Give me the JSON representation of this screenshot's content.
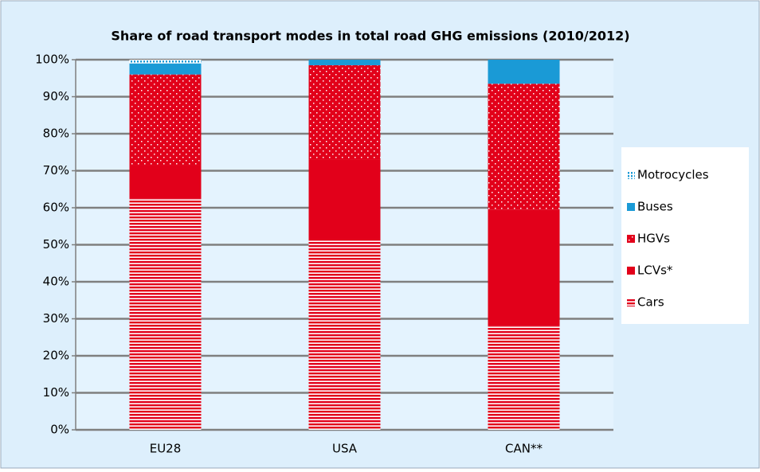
{
  "chart_data": {
    "type": "stacked_bar",
    "title": "Share of road transport modes in total road GHG emissions (2010/2012)",
    "categories": [
      "EU28",
      "USA",
      "CAN**"
    ],
    "series": [
      {
        "name": "Cars",
        "color": "#e2001a",
        "values": [
          62.5,
          51.5,
          28
        ]
      },
      {
        "name": "LCVs*",
        "color": "#e2001a",
        "values": [
          9,
          21.5,
          31.5
        ]
      },
      {
        "name": "HGVs",
        "color": "#e2001a",
        "values": [
          24.5,
          25.5,
          34
        ]
      },
      {
        "name": "Buses",
        "color": "#1a9ad6",
        "values": [
          3,
          1.5,
          6.5
        ]
      },
      {
        "name": "Motrocycles",
        "color": "#1a9ad6",
        "values": [
          1,
          0,
          0
        ]
      }
    ],
    "ylim": [
      0,
      100
    ],
    "yticks": [
      {
        "value": 0,
        "label": "0%"
      },
      {
        "value": 10,
        "label": "10%"
      },
      {
        "value": 20,
        "label": "20%"
      },
      {
        "value": 30,
        "label": "30%"
      },
      {
        "value": 40,
        "label": "40%"
      },
      {
        "value": 50,
        "label": "50%"
      },
      {
        "value": 60,
        "label": "60%"
      },
      {
        "value": 70,
        "label": "70%"
      },
      {
        "value": 80,
        "label": "80%"
      },
      {
        "value": 90,
        "label": "90%"
      },
      {
        "value": 100,
        "label": "100%"
      }
    ],
    "grid": true,
    "legend": "right"
  }
}
